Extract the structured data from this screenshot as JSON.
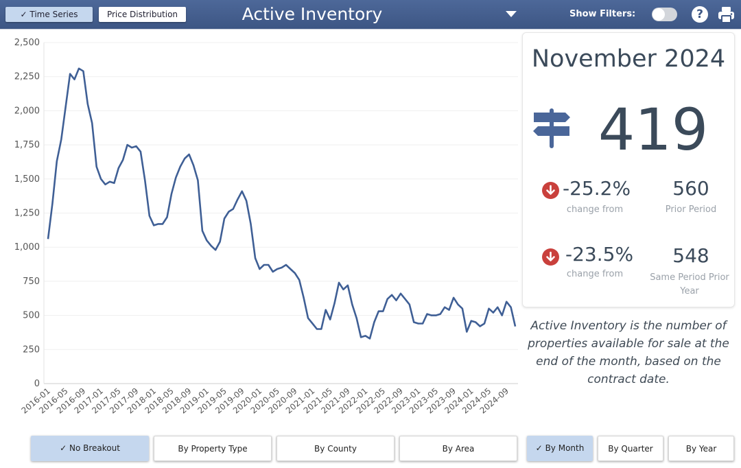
{
  "header": {
    "tabs": [
      {
        "label": "Time Series",
        "active": true
      },
      {
        "label": "Price Distribution",
        "active": false
      }
    ],
    "check_glyph": "✓",
    "title": "Active Inventory",
    "show_filters_label": "Show Filters:",
    "show_filters_on": false,
    "help_glyph": "?",
    "icons": [
      "chevron-down-icon",
      "help-icon",
      "printer-icon"
    ]
  },
  "summary": {
    "period": "November 2024",
    "value": "419",
    "icon": "signpost-icon",
    "comparisons": [
      {
        "change": "-25.2%",
        "change_label": "change from",
        "value": "560",
        "value_label": "Prior Period",
        "direction": "down"
      },
      {
        "change": "-23.5%",
        "change_label": "change from",
        "value": "548",
        "value_label": "Same Period Prior Year",
        "direction": "down"
      }
    ],
    "down_color": "#c9403c",
    "description": "Active Inventory is the number of properties available for sale at the end of the month, based on the contract date."
  },
  "breakout_buttons": [
    {
      "label": "No Breakout",
      "active": true
    },
    {
      "label": "By Property Type",
      "active": false
    },
    {
      "label": "By County",
      "active": false
    },
    {
      "label": "By Area",
      "active": false
    }
  ],
  "period_buttons": [
    {
      "label": "By Month",
      "active": true
    },
    {
      "label": "By Quarter",
      "active": false
    },
    {
      "label": "By Year",
      "active": false
    }
  ],
  "chart_data": {
    "type": "line",
    "title": "Active Inventory",
    "xlabel": "",
    "ylabel": "",
    "ylim": [
      0,
      2500
    ],
    "yticks": [
      "0",
      "250",
      "500",
      "750",
      "1,000",
      "1,250",
      "1,500",
      "1,750",
      "2,000",
      "2,250",
      "2,500"
    ],
    "ytick_values": [
      0,
      250,
      500,
      750,
      1000,
      1250,
      1500,
      1750,
      2000,
      2250,
      2500
    ],
    "xticks": [
      "2016-01",
      "2016-05",
      "2016-09",
      "2017-01",
      "2017-05",
      "2017-09",
      "2018-01",
      "2018-05",
      "2018-09",
      "2019-01",
      "2019-05",
      "2019-09",
      "2020-01",
      "2020-05",
      "2020-09",
      "2021-01",
      "2021-05",
      "2021-09",
      "2022-01",
      "2022-05",
      "2022-09",
      "2023-01",
      "2023-05",
      "2023-09",
      "2024-01",
      "2024-05",
      "2024-09"
    ],
    "grid": true,
    "line_color": "#3f5f95",
    "series": [
      {
        "name": "Active Inventory",
        "start": "2016-01",
        "values": [
          1060,
          1320,
          1630,
          1790,
          2030,
          2270,
          2230,
          2310,
          2290,
          2050,
          1910,
          1590,
          1500,
          1460,
          1480,
          1470,
          1580,
          1640,
          1750,
          1730,
          1740,
          1700,
          1490,
          1230,
          1160,
          1170,
          1170,
          1220,
          1390,
          1510,
          1590,
          1650,
          1680,
          1600,
          1490,
          1120,
          1050,
          1010,
          980,
          1040,
          1210,
          1260,
          1280,
          1350,
          1410,
          1340,
          1170,
          920,
          840,
          870,
          870,
          820,
          840,
          850,
          870,
          840,
          810,
          760,
          630,
          480,
          440,
          400,
          400,
          540,
          470,
          590,
          740,
          690,
          720,
          580,
          480,
          340,
          350,
          330,
          450,
          530,
          530,
          620,
          650,
          610,
          660,
          620,
          580,
          450,
          440,
          440,
          510,
          500,
          500,
          510,
          560,
          540,
          630,
          580,
          550,
          380,
          460,
          450,
          420,
          440,
          550,
          520,
          560,
          500,
          600,
          560,
          419
        ]
      }
    ]
  }
}
